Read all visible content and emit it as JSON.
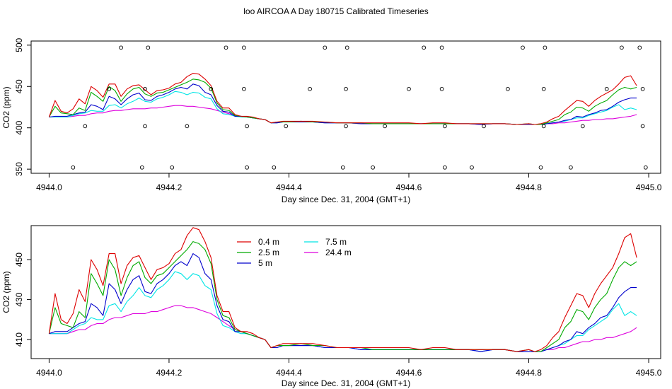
{
  "chart_data": [
    {
      "type": "scatter",
      "title": "loo AIRCOA A  Day 180715  Calibrated Timeseries",
      "xlabel": "Day since Dec. 31, 2004 (GMT+1)",
      "ylabel": "CO2 (ppm)",
      "xlim": [
        4943.97,
        4945.02
      ],
      "ylim": [
        345,
        505
      ],
      "xticks": [
        4944.0,
        4944.2,
        4944.4,
        4944.6,
        4944.8,
        4945.0
      ],
      "xtick_labels": [
        "4944.0",
        "4944.2",
        "4944.4",
        "4944.6",
        "4944.8",
        "4945.0"
      ],
      "yticks": [
        350,
        400,
        450,
        500
      ],
      "ytick_labels": [
        "350",
        "400",
        "450",
        "500"
      ],
      "points": [
        [
          4944.04,
          352
        ],
        [
          4944.06,
          402
        ],
        [
          4944.1,
          447
        ],
        [
          4944.12,
          497
        ],
        [
          4944.155,
          352
        ],
        [
          4944.16,
          402
        ],
        [
          4944.16,
          447
        ],
        [
          4944.165,
          497
        ],
        [
          4944.205,
          352
        ],
        [
          4944.23,
          402
        ],
        [
          4944.27,
          447
        ],
        [
          4944.295,
          497
        ],
        [
          4944.325,
          497
        ],
        [
          4944.325,
          447
        ],
        [
          4944.33,
          402
        ],
        [
          4944.33,
          352
        ],
        [
          4944.375,
          352
        ],
        [
          4944.395,
          402
        ],
        [
          4944.435,
          447
        ],
        [
          4944.46,
          497
        ],
        [
          4944.49,
          352
        ],
        [
          4944.495,
          402
        ],
        [
          4944.495,
          447
        ],
        [
          4944.497,
          497
        ],
        [
          4944.54,
          352
        ],
        [
          4944.56,
          402
        ],
        [
          4944.6,
          447
        ],
        [
          4944.625,
          497
        ],
        [
          4944.655,
          497
        ],
        [
          4944.655,
          447
        ],
        [
          4944.66,
          402
        ],
        [
          4944.66,
          352
        ],
        [
          4944.705,
          352
        ],
        [
          4944.725,
          402
        ],
        [
          4944.765,
          447
        ],
        [
          4944.79,
          497
        ],
        [
          4944.82,
          352
        ],
        [
          4944.825,
          402
        ],
        [
          4944.825,
          447
        ],
        [
          4944.827,
          497
        ],
        [
          4944.87,
          352
        ],
        [
          4944.89,
          402
        ],
        [
          4944.93,
          447
        ],
        [
          4944.955,
          497
        ],
        [
          4944.985,
          497
        ],
        [
          4944.99,
          447
        ],
        [
          4944.99,
          402
        ],
        [
          4944.995,
          352
        ]
      ],
      "series_ref": "lines"
    },
    {
      "type": "line",
      "title": "",
      "xlabel": "Day since Dec. 31, 2004 (GMT+1)",
      "ylabel": "CO2 (ppm)",
      "xlim": [
        4943.97,
        4945.02
      ],
      "ylim": [
        400.5,
        467
      ],
      "xticks": [
        4944.0,
        4944.2,
        4944.4,
        4944.6,
        4944.8,
        4945.0
      ],
      "xtick_labels": [
        "4944.0",
        "4944.2",
        "4944.4",
        "4944.6",
        "4944.8",
        "4945.0"
      ],
      "yticks": [
        410,
        430,
        450
      ],
      "ytick_labels": [
        "410",
        "430",
        "450"
      ],
      "legend": "top-center",
      "legend_entries": [
        {
          "name": "0.4 m",
          "color": "#dd0000"
        },
        {
          "name": "2.5 m",
          "color": "#00aa00"
        },
        {
          "name": "5 m",
          "color": "#0000cc"
        },
        {
          "name": "7.5 m",
          "color": "#00e5e5"
        },
        {
          "name": "24.4 m",
          "color": "#dd00dd"
        }
      ]
    }
  ],
  "lines": {
    "x": [
      4944.0,
      4944.01,
      4944.02,
      4944.03,
      4944.04,
      4944.05,
      4944.06,
      4944.07,
      4944.08,
      4944.09,
      4944.1,
      4944.11,
      4944.12,
      4944.13,
      4944.14,
      4944.15,
      4944.16,
      4944.17,
      4944.18,
      4944.19,
      4944.2,
      4944.21,
      4944.22,
      4944.23,
      4944.24,
      4944.25,
      4944.26,
      4944.27,
      4944.28,
      4944.29,
      4944.3,
      4944.31,
      4944.32,
      4944.33,
      4944.34,
      4944.35,
      4944.36,
      4944.37,
      4944.38,
      4944.39,
      4944.4,
      4944.42,
      4944.44,
      4944.46,
      4944.48,
      4944.5,
      4944.52,
      4944.54,
      4944.56,
      4944.58,
      4944.6,
      4944.62,
      4944.64,
      4944.66,
      4944.68,
      4944.7,
      4944.72,
      4944.74,
      4944.76,
      4944.78,
      4944.8,
      4944.81,
      4944.82,
      4944.83,
      4944.84,
      4944.85,
      4944.86,
      4944.87,
      4944.88,
      4944.89,
      4944.9,
      4944.91,
      4944.92,
      4944.93,
      4944.94,
      4944.95,
      4944.96,
      4944.97,
      4944.98
    ],
    "series": [
      {
        "name": "0.4 m",
        "color": "#dd0000",
        "values": [
          413,
          433,
          420,
          418,
          423,
          435,
          429,
          450,
          445,
          437,
          453,
          453,
          438,
          447,
          451,
          452,
          446,
          440,
          445,
          446,
          448,
          453,
          455,
          462,
          466,
          465,
          459,
          451,
          432,
          424,
          424,
          416,
          414,
          414,
          413,
          411,
          410,
          406,
          407,
          408,
          408,
          408,
          408,
          407,
          406,
          406,
          406,
          406,
          406,
          406,
          406,
          405,
          406,
          406,
          405,
          405,
          405,
          405,
          405,
          404,
          405,
          404,
          405,
          407,
          411,
          414,
          421,
          427,
          433,
          432,
          426,
          433,
          438,
          442,
          446,
          453,
          461,
          463,
          451
        ]
      },
      {
        "name": "2.5 m",
        "color": "#00aa00",
        "values": [
          413,
          426,
          418,
          417,
          416,
          424,
          421,
          443,
          438,
          432,
          450,
          445,
          432,
          441,
          447,
          449,
          441,
          438,
          442,
          443,
          446,
          449,
          452,
          455,
          459,
          458,
          455,
          448,
          430,
          422,
          421,
          415,
          414,
          413,
          412,
          411,
          410,
          406,
          407,
          407,
          407,
          408,
          407,
          407,
          406,
          406,
          406,
          405,
          405,
          405,
          405,
          405,
          405,
          405,
          405,
          405,
          405,
          405,
          405,
          404,
          405,
          404,
          404,
          406,
          408,
          410,
          416,
          419,
          425,
          424,
          420,
          426,
          430,
          433,
          440,
          446,
          449,
          447,
          449
        ]
      },
      {
        "name": "5 m",
        "color": "#0000cc",
        "values": [
          413,
          414,
          414,
          414,
          416,
          418,
          419,
          428,
          426,
          422,
          438,
          435,
          428,
          435,
          440,
          442,
          434,
          433,
          438,
          440,
          443,
          447,
          449,
          447,
          453,
          451,
          443,
          440,
          427,
          420,
          419,
          414,
          414,
          413,
          412,
          411,
          410,
          406,
          406,
          407,
          407,
          407,
          407,
          406,
          406,
          406,
          405,
          405,
          405,
          405,
          405,
          405,
          405,
          405,
          405,
          405,
          404,
          405,
          405,
          404,
          404,
          404,
          404,
          405,
          406,
          407,
          409,
          410,
          414,
          413,
          416,
          418,
          421,
          422,
          426,
          431,
          434,
          436,
          436
        ]
      },
      {
        "name": "7.5 m",
        "color": "#00e5e5",
        "values": [
          413,
          413,
          413,
          413,
          415,
          417,
          418,
          421,
          420,
          420,
          427,
          428,
          424,
          429,
          432,
          436,
          432,
          431,
          435,
          437,
          440,
          444,
          443,
          440,
          443,
          442,
          437,
          435,
          423,
          417,
          416,
          414,
          413,
          413,
          412,
          411,
          410,
          406,
          406,
          407,
          407,
          407,
          407,
          406,
          406,
          406,
          405,
          405,
          405,
          405,
          405,
          405,
          405,
          405,
          405,
          405,
          404,
          405,
          405,
          404,
          404,
          404,
          404,
          405,
          406,
          407,
          408,
          410,
          412,
          412,
          415,
          417,
          419,
          421,
          425,
          428,
          422,
          424,
          422
        ]
      },
      {
        "name": "24.4 m",
        "color": "#dd00dd",
        "values": [
          413,
          413,
          413,
          413,
          414,
          415,
          415,
          417,
          418,
          418,
          420,
          421,
          421,
          422,
          423,
          423,
          423,
          424,
          424,
          425,
          426,
          427,
          427,
          426,
          426,
          425,
          424,
          423,
          421,
          419,
          417,
          415,
          414,
          413,
          412,
          411,
          410,
          406,
          406,
          407,
          407,
          407,
          407,
          406,
          406,
          406,
          405,
          405,
          405,
          405,
          405,
          405,
          405,
          405,
          405,
          405,
          404,
          405,
          405,
          404,
          404,
          404,
          404,
          405,
          405,
          406,
          406,
          407,
          408,
          409,
          409,
          410,
          410,
          411,
          411,
          412,
          413,
          414,
          416
        ]
      }
    ]
  }
}
